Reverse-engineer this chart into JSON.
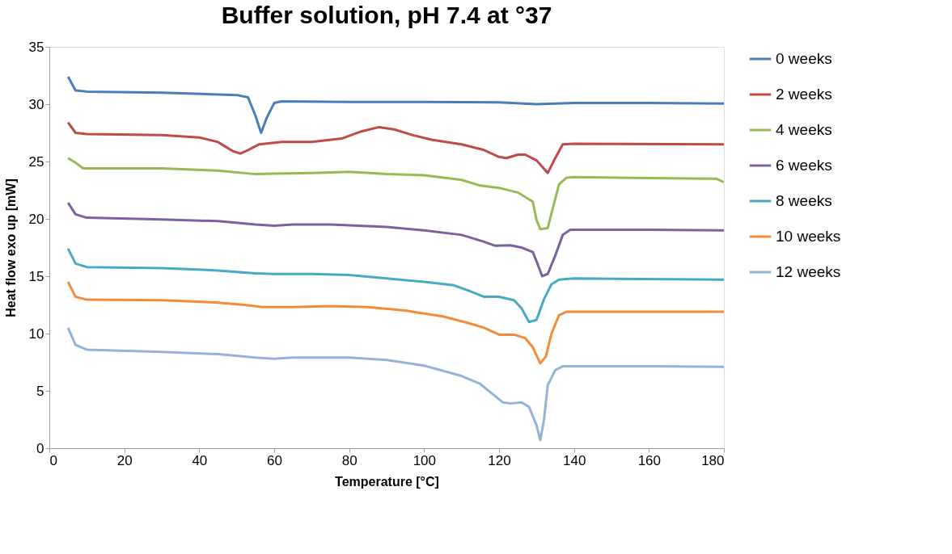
{
  "chart_data": {
    "type": "line",
    "title": "Buffer solution, pH 7.4 at °37",
    "xlabel": "Temperature [°C]",
    "ylabel": "Heat flow exo up [mW]",
    "xlim": [
      0,
      180
    ],
    "xticks": [
      0,
      20,
      40,
      60,
      80,
      100,
      120,
      140,
      160,
      180
    ],
    "ylim": [
      0,
      35
    ],
    "yticks": [
      0,
      5,
      10,
      15,
      20,
      25,
      30,
      35
    ],
    "grid": false,
    "legend": "right",
    "marker": "none",
    "line_style": "solid",
    "series": [
      {
        "name": "0 weeks",
        "color": "#4a7ebb",
        "x": [
          5,
          7,
          10,
          30,
          50,
          53,
          55,
          56.5,
          58,
          60,
          62,
          80,
          100,
          120,
          130,
          135,
          140,
          160,
          180
        ],
        "values": [
          32.4,
          31.2,
          31.1,
          31.0,
          30.8,
          30.6,
          29.0,
          27.5,
          28.8,
          30.1,
          30.25,
          30.2,
          30.2,
          30.15,
          30.0,
          30.05,
          30.1,
          30.1,
          30.05
        ]
      },
      {
        "name": "2 weeks",
        "color": "#be4b48",
        "x": [
          5,
          7,
          10,
          30,
          40,
          45,
          49,
          51,
          53,
          56,
          62,
          70,
          78,
          83,
          88,
          92,
          97,
          102,
          110,
          116,
          120,
          122,
          125,
          127,
          130,
          133,
          135,
          137,
          140,
          180
        ],
        "values": [
          28.4,
          27.5,
          27.4,
          27.3,
          27.1,
          26.7,
          25.9,
          25.7,
          26.0,
          26.5,
          26.7,
          26.7,
          27.0,
          27.6,
          28.0,
          27.8,
          27.3,
          26.9,
          26.5,
          26.0,
          25.4,
          25.3,
          25.6,
          25.6,
          25.1,
          24.0,
          25.3,
          26.5,
          26.55,
          26.5
        ]
      },
      {
        "name": "4 weeks",
        "color": "#98b954",
        "x": [
          5,
          7,
          9,
          15,
          30,
          45,
          55,
          60,
          70,
          80,
          90,
          100,
          110,
          115,
          120,
          125,
          129,
          130,
          131,
          133,
          134,
          136,
          138,
          140,
          160,
          176,
          178,
          180
        ],
        "values": [
          25.3,
          24.9,
          24.4,
          24.4,
          24.4,
          24.2,
          23.9,
          23.95,
          24.0,
          24.1,
          23.9,
          23.8,
          23.4,
          22.9,
          22.7,
          22.3,
          21.5,
          19.9,
          19.1,
          19.2,
          20.5,
          23.0,
          23.6,
          23.65,
          23.55,
          23.5,
          23.5,
          23.2
        ]
      },
      {
        "name": "6 weeks",
        "color": "#7d60a0",
        "x": [
          5,
          7,
          10,
          30,
          45,
          55,
          60,
          65,
          75,
          90,
          100,
          110,
          116,
          119,
          123,
          126,
          129,
          130,
          131.5,
          133,
          135,
          137,
          139,
          160,
          180
        ],
        "values": [
          21.4,
          20.4,
          20.1,
          19.95,
          19.8,
          19.5,
          19.4,
          19.5,
          19.5,
          19.3,
          19.0,
          18.6,
          18.0,
          17.65,
          17.7,
          17.5,
          17.1,
          16.3,
          15.0,
          15.2,
          16.8,
          18.6,
          19.05,
          19.05,
          19.0
        ]
      },
      {
        "name": "8 weeks",
        "color": "#46aac5",
        "x": [
          5,
          7,
          10,
          30,
          45,
          55,
          60,
          70,
          80,
          90,
          100,
          108,
          113,
          116,
          120,
          124,
          126,
          128,
          130,
          132,
          134,
          136,
          140,
          180
        ],
        "values": [
          17.4,
          16.1,
          15.8,
          15.7,
          15.5,
          15.25,
          15.2,
          15.2,
          15.1,
          14.8,
          14.5,
          14.2,
          13.6,
          13.2,
          13.2,
          12.9,
          12.2,
          11.0,
          11.2,
          13.0,
          14.3,
          14.7,
          14.8,
          14.7
        ]
      },
      {
        "name": "10 weeks",
        "color": "#f38b3a",
        "x": [
          5,
          7,
          10,
          30,
          45,
          52,
          57,
          65,
          75,
          85,
          95,
          105,
          112,
          116,
          120,
          124,
          127,
          129,
          131,
          132.5,
          134,
          136,
          138,
          160,
          180
        ],
        "values": [
          14.5,
          13.2,
          12.95,
          12.9,
          12.7,
          12.5,
          12.3,
          12.3,
          12.4,
          12.3,
          12.0,
          11.5,
          10.9,
          10.5,
          9.9,
          9.9,
          9.6,
          8.8,
          7.4,
          8.0,
          10.0,
          11.6,
          11.9,
          11.9,
          11.9
        ]
      },
      {
        "name": "12 weeks",
        "color": "#95b3d7",
        "x": [
          5,
          7,
          10,
          30,
          45,
          55,
          60,
          65,
          80,
          90,
          100,
          110,
          115,
          118,
          121,
          123,
          126,
          128,
          130,
          131,
          132,
          133,
          135,
          137,
          160,
          180
        ],
        "values": [
          10.5,
          9.0,
          8.6,
          8.4,
          8.2,
          7.9,
          7.8,
          7.9,
          7.9,
          7.7,
          7.2,
          6.3,
          5.6,
          4.8,
          4.0,
          3.9,
          4.0,
          3.6,
          2.0,
          0.7,
          2.5,
          5.5,
          6.8,
          7.15,
          7.15,
          7.1
        ]
      }
    ]
  }
}
